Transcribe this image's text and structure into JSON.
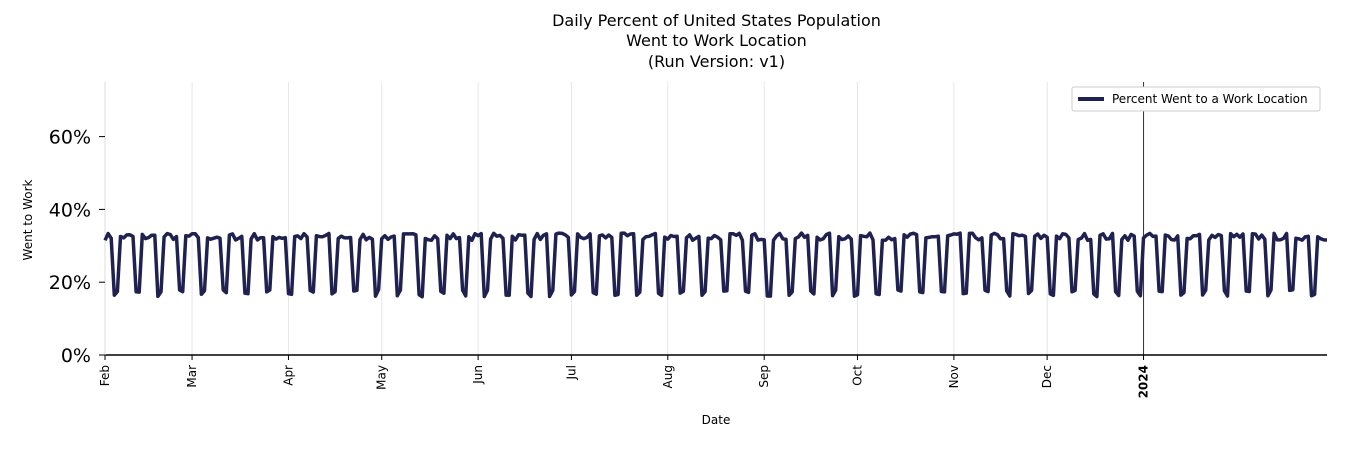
{
  "chart_data": {
    "type": "line",
    "title_lines": [
      "Daily Percent of United States Population",
      "Went to Work Location",
      "(Run Version: v1)"
    ],
    "xlabel": "Date",
    "ylabel": "Went to Work",
    "x_range": [
      "2023-02-01",
      "2024-02-29"
    ],
    "ylim": [
      0,
      75
    ],
    "y_ticks": [
      {
        "value": 0,
        "label": "0%"
      },
      {
        "value": 20,
        "label": "20%"
      },
      {
        "value": 40,
        "label": "40%"
      },
      {
        "value": 60,
        "label": "60%"
      }
    ],
    "x_ticks": [
      {
        "date": "2023-02-01",
        "label": "Feb",
        "bold": false
      },
      {
        "date": "2023-03-01",
        "label": "Mar",
        "bold": false
      },
      {
        "date": "2023-04-01",
        "label": "Apr",
        "bold": false
      },
      {
        "date": "2023-05-01",
        "label": "May",
        "bold": false
      },
      {
        "date": "2023-06-01",
        "label": "Jun",
        "bold": false
      },
      {
        "date": "2023-07-01",
        "label": "Jul",
        "bold": false
      },
      {
        "date": "2023-08-01",
        "label": "Aug",
        "bold": false
      },
      {
        "date": "2023-09-01",
        "label": "Sep",
        "bold": false
      },
      {
        "date": "2023-10-01",
        "label": "Oct",
        "bold": false
      },
      {
        "date": "2023-11-01",
        "label": "Nov",
        "bold": false
      },
      {
        "date": "2023-12-01",
        "label": "Dec",
        "bold": false
      },
      {
        "date": "2024-01-01",
        "label": "2024",
        "bold": true
      }
    ],
    "vertical_marker": "2024-01-01",
    "grid": "vertical",
    "legend_position": "top-right",
    "series": [
      {
        "name": "Percent Went to a Work Location",
        "color": "#1f2150",
        "weekday_level": 32.5,
        "weekend_level": 17.0,
        "start_date": "2023-02-01",
        "end_date": "2024-02-29"
      }
    ]
  }
}
